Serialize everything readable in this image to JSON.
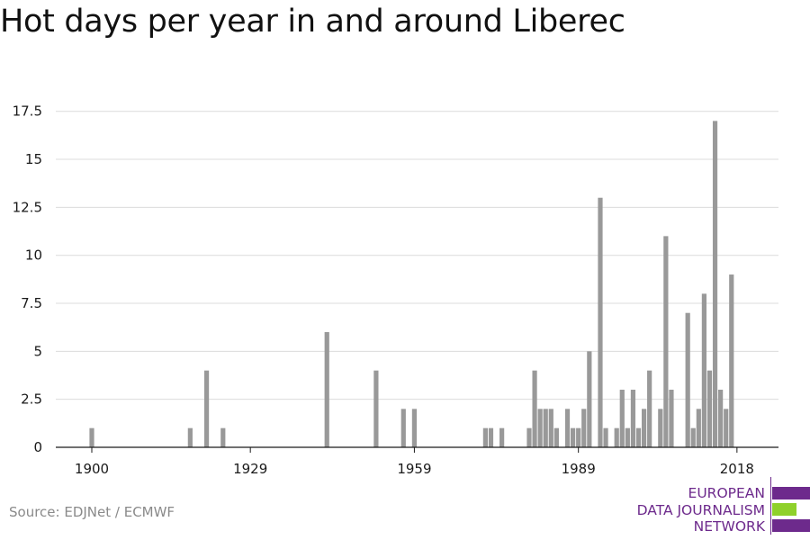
{
  "chart_data": {
    "type": "bar",
    "title": "Hot days per year in and around Liberec",
    "xlabel": "",
    "ylabel": "",
    "ylim": [
      0,
      18
    ],
    "xlim": [
      1893.5,
      2024
    ],
    "y_ticks": [
      "0",
      "2.5",
      "5",
      "7.5",
      "10",
      "12.5",
      "15",
      "17.5"
    ],
    "x_ticks": [
      "1900",
      "1929",
      "1959",
      "1989",
      "2018"
    ],
    "grid": "horizontal",
    "color": "#999999",
    "series": [
      {
        "x": [
          1900,
          1918,
          1921,
          1924,
          1943,
          1952,
          1957,
          1959,
          1972,
          1973,
          1975,
          1980,
          1981,
          1982,
          1983,
          1984,
          1985,
          1987,
          1988,
          1989,
          1990,
          1991,
          1992,
          1993,
          1994,
          1995,
          1996,
          1997,
          1998,
          1999,
          2000,
          2001,
          2002,
          2003,
          2004,
          2005,
          2006,
          2008,
          2009,
          2010,
          2011,
          2012,
          2013,
          2014,
          2015,
          2016,
          2017,
          2018
        ],
        "values": [
          1,
          1,
          4,
          1,
          6,
          4,
          2,
          2,
          1,
          1,
          1,
          1,
          4,
          2,
          2,
          2,
          1,
          2,
          1,
          1,
          2,
          5,
          0,
          13,
          1,
          0,
          1,
          3,
          1,
          3,
          1,
          2,
          4,
          0,
          2,
          11,
          3,
          0,
          7,
          1,
          2,
          8,
          4,
          17,
          3,
          2,
          9,
          0
        ]
      }
    ]
  },
  "source": "Source: EDJNet / ECMWF",
  "logo": {
    "line1": "EUROPEAN",
    "line2": "DATA JOURNALISM",
    "line3": "NETWORK",
    "color_purple": "#6d2a8c",
    "color_green": "#8fd12b"
  }
}
